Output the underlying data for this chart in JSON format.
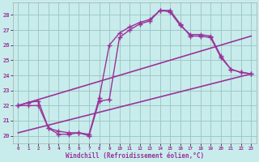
{
  "xlabel": "Windchill (Refroidissement éolien,°C)",
  "bg_color": "#c8ecec",
  "grid_color": "#a0c8c8",
  "line_color": "#993399",
  "xlim": [
    -0.5,
    23.5
  ],
  "ylim": [
    19.5,
    28.8
  ],
  "xticks": [
    0,
    1,
    2,
    3,
    4,
    5,
    6,
    7,
    8,
    9,
    10,
    11,
    12,
    13,
    14,
    15,
    16,
    17,
    18,
    19,
    20,
    21,
    22,
    23
  ],
  "yticks": [
    20,
    21,
    22,
    23,
    24,
    25,
    26,
    27,
    28
  ],
  "series": [
    {
      "x": [
        0,
        1,
        2,
        3,
        4,
        5,
        6,
        7,
        8,
        9,
        10,
        11,
        12,
        13,
        14,
        15,
        16,
        17,
        18,
        19,
        20,
        21,
        22,
        23
      ],
      "y": [
        22.0,
        22.2,
        22.3,
        20.5,
        20.3,
        20.2,
        20.2,
        20.1,
        22.5,
        26.0,
        26.8,
        27.2,
        27.5,
        27.7,
        28.3,
        28.2,
        27.3,
        26.7,
        26.7,
        26.6,
        25.3,
        24.4,
        24.2,
        24.1
      ],
      "marker": "+",
      "markersize": 4,
      "linewidth": 1.0,
      "linestyle": "-"
    },
    {
      "x": [
        0,
        1,
        2,
        3,
        4,
        5,
        6,
        7,
        8,
        9,
        10,
        11,
        12,
        13,
        14,
        15,
        16,
        17,
        18,
        19,
        20,
        21,
        22,
        23
      ],
      "y": [
        22.0,
        22.0,
        22.0,
        20.5,
        20.1,
        20.1,
        20.2,
        20.0,
        22.3,
        22.4,
        26.5,
        27.0,
        27.4,
        27.6,
        28.3,
        28.3,
        27.4,
        26.6,
        26.6,
        26.5,
        25.2,
        24.4,
        24.2,
        24.1
      ],
      "marker": "+",
      "markersize": 4,
      "linewidth": 1.0,
      "linestyle": "-"
    },
    {
      "x": [
        0,
        23
      ],
      "y": [
        22.0,
        26.6
      ],
      "marker": null,
      "markersize": 0,
      "linewidth": 1.2,
      "linestyle": "-"
    },
    {
      "x": [
        0,
        23
      ],
      "y": [
        20.2,
        24.1
      ],
      "marker": null,
      "markersize": 0,
      "linewidth": 1.2,
      "linestyle": "-"
    }
  ]
}
